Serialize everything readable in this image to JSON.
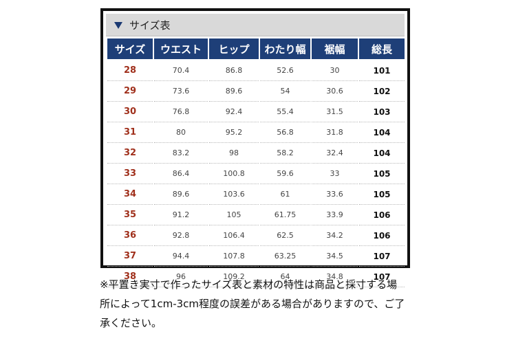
{
  "panel": {
    "title": "サイズ表",
    "title_icon": "triangle-down-icon",
    "accent_color": "#1e3f78",
    "size_color": "#a0301c"
  },
  "table": {
    "headers": [
      "サイズ",
      "ウエスト",
      "ヒップ",
      "わたり幅",
      "裾幅",
      "総長"
    ],
    "rows": [
      [
        "28",
        "70.4",
        "86.8",
        "52.6",
        "30",
        "101"
      ],
      [
        "29",
        "73.6",
        "89.6",
        "54",
        "30.6",
        "102"
      ],
      [
        "30",
        "76.8",
        "92.4",
        "55.4",
        "31.5",
        "103"
      ],
      [
        "31",
        "80",
        "95.2",
        "56.8",
        "31.8",
        "104"
      ],
      [
        "32",
        "83.2",
        "98",
        "58.2",
        "32.4",
        "104"
      ],
      [
        "33",
        "86.4",
        "100.8",
        "59.6",
        "33",
        "105"
      ],
      [
        "34",
        "89.6",
        "103.6",
        "61",
        "33.6",
        "105"
      ],
      [
        "35",
        "91.2",
        "105",
        "61.75",
        "33.9",
        "106"
      ],
      [
        "36",
        "92.8",
        "106.4",
        "62.5",
        "34.2",
        "106"
      ],
      [
        "37",
        "94.4",
        "107.8",
        "63.25",
        "34.5",
        "107"
      ],
      [
        "38",
        "96",
        "109.2",
        "64",
        "34.8",
        "107"
      ]
    ]
  },
  "note": {
    "lines": [
      "※平置き実寸で作ったサイズ表と素材の特性は商品と採寸する場",
      "所によって1cm-3cm程度の誤差がある場合がありますので、ご了",
      "承ください。"
    ]
  }
}
